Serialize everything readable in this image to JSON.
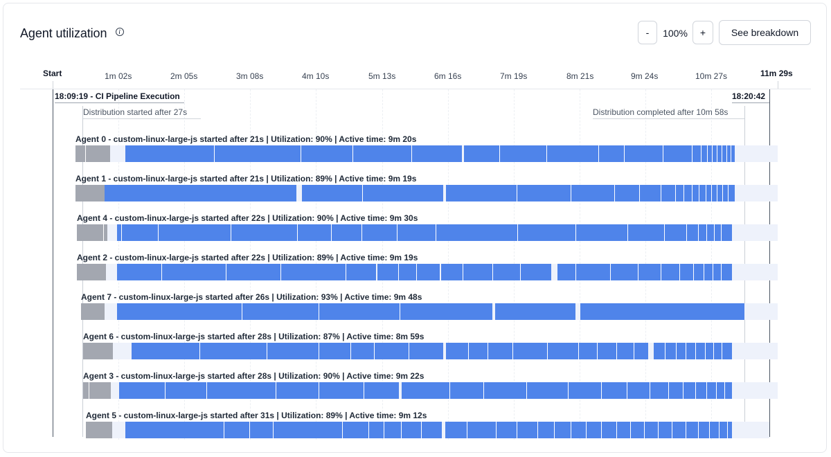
{
  "header": {
    "title": "Agent utilization",
    "zoom_minus": "-",
    "zoom_level": "100%",
    "zoom_plus": "+",
    "breakdown_button": "See breakdown"
  },
  "axis": {
    "start_label": "Start",
    "end_label": "11m 29s",
    "ticks": [
      "1m 02s",
      "2m 05s",
      "3m 08s",
      "4m 10s",
      "5m 13s",
      "6m 16s",
      "7m 19s",
      "8m 21s",
      "9m 24s",
      "10m 27s"
    ]
  },
  "markers": {
    "start": "18:09:19 - CI Pipeline Execution",
    "end": "18:20:42",
    "distribution_started": "Distribution started after 27s",
    "distribution_completed": "Distribution completed after 10m 58s"
  },
  "agents": [
    {
      "label": "Agent 0 - custom-linux-large-js started after 21s | Utilization: 90% | Active time: 9m 20s"
    },
    {
      "label": "Agent 1 - custom-linux-large-js started after 21s | Utilization: 89% | Active time: 9m 19s"
    },
    {
      "label": "Agent 4 - custom-linux-large-js started after 22s | Utilization: 90% | Active time: 9m 30s"
    },
    {
      "label": "Agent 2 - custom-linux-large-js started after 22s | Utilization: 89% | Active time: 9m 19s"
    },
    {
      "label": "Agent 7 - custom-linux-large-js started after 26s | Utilization: 93% | Active time: 9m 48s"
    },
    {
      "label": "Agent 6 - custom-linux-large-js started after 28s | Utilization: 87% | Active time: 8m 59s"
    },
    {
      "label": "Agent 3 - custom-linux-large-js started after 28s | Utilization: 90% | Active time: 9m 22s"
    },
    {
      "label": "Agent 5 - custom-linux-large-js started after 31s | Utilization: 89% | Active time: 9m 12s"
    }
  ],
  "colors": {
    "task": "#4f84ea",
    "setup": "#a3a7b0",
    "track": "#eef2fb"
  }
}
